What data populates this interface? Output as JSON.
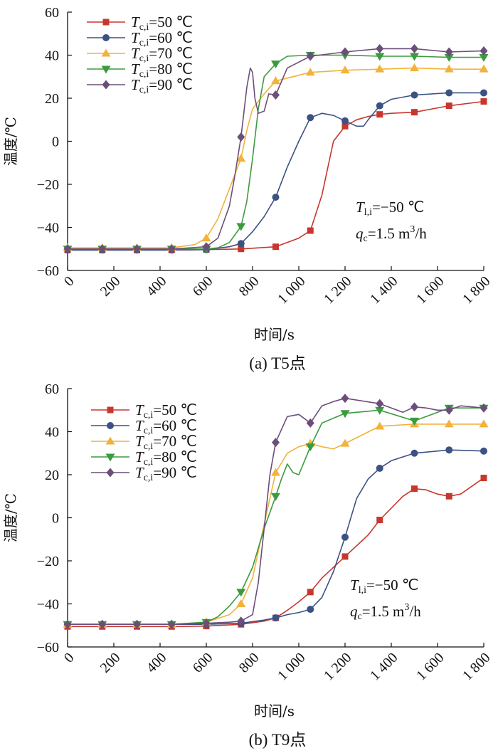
{
  "chart_data": [
    {
      "type": "line",
      "panel": "a",
      "caption": "(a)  T5点",
      "xlabel": "时间/s",
      "ylabel": "温度/℃",
      "xlim": [
        0,
        1800
      ],
      "ylim": [
        -60,
        60
      ],
      "xticks": [
        "0",
        "200",
        "400",
        "600",
        "800",
        "1 000",
        "1 200",
        "1 400",
        "1 600",
        "1 800"
      ],
      "yticks": [
        "-60",
        "-40",
        "-20",
        "0",
        "20",
        "40",
        "60"
      ],
      "annotation": {
        "line1_T": "T",
        "line1_sub": "l,i",
        "line1_rest": "=−50 ℃",
        "line2_q": "q",
        "line2_sub": "c",
        "line2_rest": "=1.5 m",
        "line2_sup": "3",
        "line2_end": "/h"
      },
      "legend_position": "top-left",
      "series": [
        {
          "name": "Tc,i=50 ℃",
          "label_T": "T",
          "label_sub": "c,i",
          "label_rest": "=50 ℃",
          "color": "#c8372d",
          "marker": "square",
          "x": [
            0,
            150,
            300,
            450,
            600,
            750,
            900,
            1000,
            1050,
            1100,
            1150,
            1200,
            1250,
            1300,
            1350,
            1400,
            1500,
            1650,
            1800
          ],
          "y": [
            -50.5,
            -50.5,
            -50.5,
            -50.5,
            -50.3,
            -50,
            -49,
            -45,
            -41.5,
            -25,
            0,
            7,
            10,
            11.5,
            12.5,
            13,
            13.5,
            16.5,
            18.5
          ],
          "marker_x": [
            0,
            150,
            300,
            450,
            600,
            750,
            900,
            1050,
            1200,
            1350,
            1500,
            1650,
            1800
          ]
        },
        {
          "name": "Tc,i=60 ℃",
          "label_T": "T",
          "label_sub": "c,i",
          "label_rest": "=60 ℃",
          "color": "#3b5283",
          "marker": "circle",
          "x": [
            0,
            150,
            300,
            450,
            600,
            700,
            750,
            800,
            850,
            900,
            950,
            1000,
            1050,
            1100,
            1150,
            1200,
            1250,
            1280,
            1300,
            1350,
            1400,
            1500,
            1650,
            1800
          ],
          "y": [
            -50.5,
            -50.5,
            -50.5,
            -50.5,
            -50.3,
            -49,
            -47.5,
            -42,
            -35,
            -26,
            -12,
            0,
            11,
            13,
            12,
            9.5,
            7,
            7,
            10,
            16.5,
            19.5,
            21.5,
            22.5,
            22.5
          ],
          "marker_x": [
            0,
            150,
            300,
            450,
            600,
            750,
            900,
            1050,
            1200,
            1350,
            1500,
            1650,
            1800
          ]
        },
        {
          "name": "Tc,i=70 ℃",
          "label_T": "T",
          "label_sub": "c,i",
          "label_rest": "=70 ℃",
          "color": "#f2b23b",
          "marker": "triangle-up",
          "x": [
            0,
            150,
            300,
            450,
            550,
            600,
            650,
            700,
            725,
            750,
            775,
            800,
            850,
            900,
            1050,
            1200,
            1350,
            1500,
            1650,
            1800
          ],
          "y": [
            -49.5,
            -49.5,
            -49.5,
            -49.5,
            -48,
            -45,
            -36,
            -22,
            -15,
            -8,
            5,
            15,
            22,
            28,
            32,
            33,
            33.5,
            34,
            33.5,
            33.5
          ],
          "marker_x": [
            0,
            150,
            300,
            450,
            600,
            750,
            900,
            1050,
            1200,
            1350,
            1500,
            1650,
            1800
          ]
        },
        {
          "name": "Tc,i=80 ℃",
          "label_T": "T",
          "label_sub": "c,i",
          "label_rest": "=80 ℃",
          "color": "#3c9a3f",
          "marker": "triangle-down",
          "x": [
            0,
            150,
            300,
            450,
            600,
            650,
            700,
            750,
            775,
            800,
            825,
            850,
            900,
            950,
            1050,
            1200,
            1350,
            1500,
            1650,
            1800
          ],
          "y": [
            -50,
            -50,
            -50,
            -50,
            -50,
            -49.5,
            -47,
            -39.5,
            -28,
            -8,
            15,
            30,
            36,
            39.5,
            40,
            40,
            39.5,
            39.5,
            39,
            39
          ],
          "marker_x": [
            0,
            150,
            300,
            450,
            600,
            750,
            900,
            1050,
            1200,
            1350,
            1500,
            1650,
            1800
          ]
        },
        {
          "name": "Tc,i=90 ℃",
          "label_T": "T",
          "label_sub": "c,i",
          "label_rest": "=90 ℃",
          "color": "#6c4e7a",
          "marker": "diamond",
          "x": [
            0,
            150,
            300,
            450,
            600,
            650,
            700,
            725,
            750,
            775,
            790,
            800,
            810,
            825,
            850,
            870,
            900,
            950,
            1050,
            1200,
            1350,
            1500,
            1650,
            1800
          ],
          "y": [
            -50,
            -50,
            -50,
            -50,
            -49,
            -45,
            -30,
            -15,
            2,
            25,
            34,
            32,
            20,
            13,
            14,
            22,
            21.5,
            34,
            39.5,
            41.5,
            43,
            43,
            41.5,
            42
          ],
          "marker_x": [
            0,
            150,
            300,
            450,
            600,
            750,
            900,
            1050,
            1200,
            1350,
            1500,
            1650,
            1800
          ]
        }
      ]
    },
    {
      "type": "line",
      "panel": "b",
      "caption": "(b)  T9点",
      "xlabel": "时间/s",
      "ylabel": "温度/℃",
      "xlim": [
        0,
        1800
      ],
      "ylim": [
        -60,
        60
      ],
      "xticks": [
        "0",
        "200",
        "400",
        "600",
        "800",
        "1 000",
        "1 200",
        "1 400",
        "1 600",
        "1 800"
      ],
      "yticks": [
        "-60",
        "-40",
        "-20",
        "0",
        "20",
        "40",
        "60"
      ],
      "annotation": {
        "line1_T": "T",
        "line1_sub": "l,i",
        "line1_rest": "=−50 ℃",
        "line2_q": "q",
        "line2_sub": "c",
        "line2_rest": "=1.5 m",
        "line2_sup": "3",
        "line2_end": "/h"
      },
      "legend_position": "top-left",
      "series": [
        {
          "name": "Tc,i=50 ℃",
          "label_T": "T",
          "label_sub": "c,i",
          "label_rest": "=50 ℃",
          "color": "#c8372d",
          "marker": "square",
          "x": [
            0,
            150,
            300,
            450,
            600,
            750,
            850,
            900,
            950,
            1000,
            1050,
            1100,
            1200,
            1300,
            1350,
            1450,
            1500,
            1550,
            1600,
            1650,
            1700,
            1800
          ],
          "y": [
            -50.5,
            -50.5,
            -50.5,
            -50.5,
            -50.3,
            -49.5,
            -48,
            -46.5,
            -43,
            -39,
            -34.5,
            -28,
            -18,
            -8,
            -1,
            10,
            13.5,
            13,
            11,
            10,
            11,
            18.5
          ],
          "marker_x": [
            0,
            150,
            300,
            450,
            600,
            750,
            900,
            1050,
            1200,
            1350,
            1500,
            1650,
            1800
          ]
        },
        {
          "name": "Tc,i=60 ℃",
          "label_T": "T",
          "label_sub": "c,i",
          "label_rest": "=60 ℃",
          "color": "#3b5283",
          "marker": "circle",
          "x": [
            0,
            150,
            300,
            450,
            600,
            750,
            850,
            900,
            950,
            1000,
            1050,
            1100,
            1150,
            1200,
            1250,
            1300,
            1350,
            1400,
            1500,
            1650,
            1800
          ],
          "y": [
            -49.5,
            -49.5,
            -49.5,
            -49.5,
            -49.5,
            -49,
            -47.5,
            -46.5,
            -45,
            -44,
            -42.5,
            -37,
            -25,
            -9,
            9,
            18,
            23,
            26.5,
            30,
            31.5,
            31
          ],
          "marker_x": [
            0,
            150,
            300,
            450,
            600,
            750,
            900,
            1050,
            1200,
            1350,
            1500,
            1650,
            1800
          ]
        },
        {
          "name": "Tc,i=70 ℃",
          "label_T": "T",
          "label_sub": "c,i",
          "label_rest": "=70 ℃",
          "color": "#f2b23b",
          "marker": "triangle-up",
          "x": [
            0,
            150,
            300,
            450,
            600,
            700,
            750,
            800,
            850,
            900,
            950,
            1000,
            1050,
            1100,
            1150,
            1200,
            1350,
            1500,
            1650,
            1800
          ],
          "y": [
            -49.5,
            -49.5,
            -49.5,
            -49.5,
            -48.5,
            -45,
            -40,
            -28,
            -3,
            21,
            30,
            33,
            34.5,
            33,
            32,
            34.5,
            42.5,
            43.5,
            43.5,
            43.5
          ],
          "marker_x": [
            0,
            150,
            300,
            450,
            600,
            750,
            900,
            1050,
            1200,
            1350,
            1500,
            1650,
            1800
          ]
        },
        {
          "name": "Tc,i=80 ℃",
          "label_T": "T",
          "label_sub": "c,i",
          "label_rest": "=80 ℃",
          "color": "#3c9a3f",
          "marker": "triangle-down",
          "x": [
            0,
            150,
            300,
            450,
            600,
            650,
            700,
            750,
            800,
            850,
            900,
            925,
            950,
            975,
            1000,
            1050,
            1100,
            1200,
            1350,
            1500,
            1650,
            1800
          ],
          "y": [
            -49.5,
            -49.5,
            -49.5,
            -49.5,
            -48.5,
            -46,
            -41,
            -34.5,
            -23,
            -5,
            10,
            18,
            25,
            21,
            20,
            33,
            44,
            48.5,
            50,
            45,
            51,
            51
          ],
          "marker_x": [
            0,
            150,
            300,
            450,
            600,
            750,
            900,
            1050,
            1200,
            1350,
            1500,
            1650,
            1800
          ]
        },
        {
          "name": "Tc,i=90 ℃",
          "label_T": "T",
          "label_sub": "c,i",
          "label_rest": "=90 ℃",
          "color": "#6c4e7a",
          "marker": "diamond",
          "x": [
            0,
            150,
            300,
            450,
            600,
            700,
            750,
            800,
            825,
            850,
            875,
            900,
            950,
            1000,
            1050,
            1100,
            1150,
            1200,
            1350,
            1450,
            1500,
            1550,
            1600,
            1650,
            1700,
            1800
          ],
          "y": [
            -49.5,
            -49.5,
            -49.5,
            -49.5,
            -49,
            -48.5,
            -48,
            -45,
            -30,
            -5,
            20,
            35,
            47,
            48,
            44,
            52,
            54,
            55.5,
            53,
            49,
            51.5,
            51,
            50,
            50,
            52,
            51
          ],
          "marker_x": [
            0,
            150,
            300,
            450,
            600,
            750,
            900,
            1050,
            1200,
            1350,
            1500,
            1650,
            1800
          ]
        }
      ]
    }
  ]
}
